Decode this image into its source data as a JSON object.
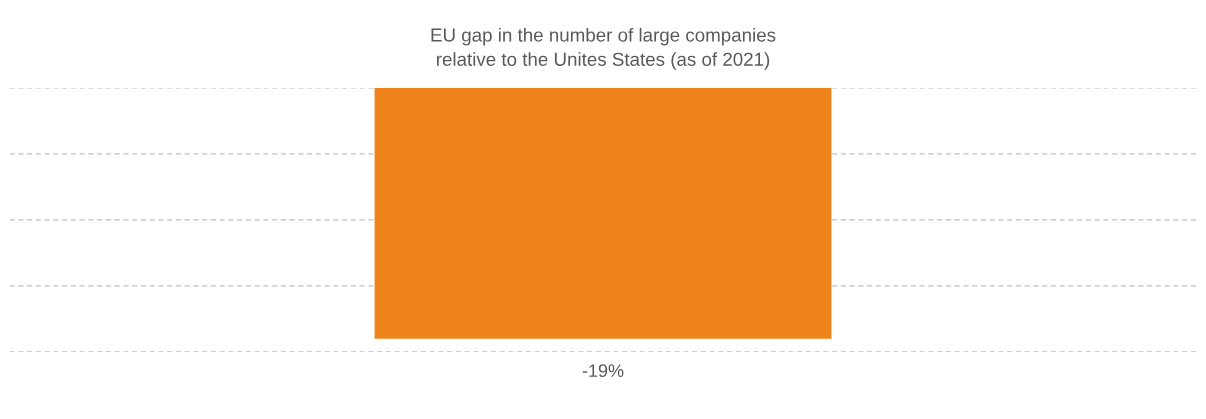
{
  "chart_data": {
    "type": "bar",
    "title": "EU gap in the number of large companies\nrelative to the Unites States (as of 2021)",
    "categories": [
      null
    ],
    "series": [
      {
        "color": "#f0841c",
        "values": [
          -19
        ],
        "value_labels": [
          "-19%"
        ]
      }
    ],
    "ylim": [
      -20,
      0
    ],
    "yticks": [
      {
        "value": 0,
        "label": null
      },
      {
        "value": -5,
        "label": null
      },
      {
        "value": -10,
        "label": null
      },
      {
        "value": -15,
        "label": null
      },
      {
        "value": -20,
        "label": null
      }
    ],
    "grid": "y"
  }
}
